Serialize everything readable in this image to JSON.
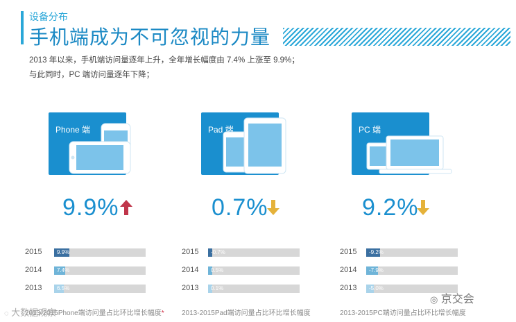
{
  "header": {
    "section_label": "设备分布",
    "title": "手机端成为不可忽视的力量",
    "desc_line1": "2013 年以来，手机端访问量逐年上升，全年增长幅度由 7.4% 上涨至 9.9%；",
    "desc_line2": "与此同时，PC 端访问量逐年下降；"
  },
  "colors": {
    "accent": "#2aa7d8",
    "panel": "#1a8fcf",
    "bar_dark": "#3a6fa0",
    "bar_mid": "#6fb4d8",
    "bar_light": "#a9d3ea",
    "up_arrow": "#c0354a",
    "down_arrow": "#e5b23a",
    "track": "#d7d7d7"
  },
  "chart_data": [
    {
      "type": "bar",
      "panel_label": "Phone 端",
      "headline_value": "9.9%",
      "trend": "up",
      "categories": [
        "2015",
        "2014",
        "2013"
      ],
      "values": [
        9.9,
        7.4,
        6.5
      ],
      "value_labels": [
        "9.9%",
        "7.4%",
        "6.5%"
      ],
      "xlim": [
        0,
        60
      ],
      "caption": "2013-2015Phone端访问量占比环比增长幅度",
      "caption_mark": "*"
    },
    {
      "type": "bar",
      "panel_label": "Pad 端",
      "headline_value": "0.7%",
      "trend": "down",
      "categories": [
        "2015",
        "2014",
        "2013"
      ],
      "values": [
        -0.7,
        0.5,
        0.1
      ],
      "value_labels": [
        "-0.7%",
        "0.5%",
        "0.1%"
      ],
      "xlim": [
        0,
        60
      ],
      "caption": "2013-2015Pad端访问量占比环比增长幅度"
    },
    {
      "type": "bar",
      "panel_label": "PC 端",
      "headline_value": "9.2%",
      "trend": "down",
      "categories": [
        "2015",
        "2014",
        "2013"
      ],
      "values": [
        -9.2,
        -7.9,
        -5.0
      ],
      "value_labels": [
        "-9.2%",
        "-7.9%",
        "-5.0%"
      ],
      "xlim": [
        0,
        60
      ],
      "caption": "2013-2015PC端访问量占比环比增长幅度"
    }
  ],
  "watermarks": {
    "left": "大数据观察",
    "right": "京交会"
  }
}
